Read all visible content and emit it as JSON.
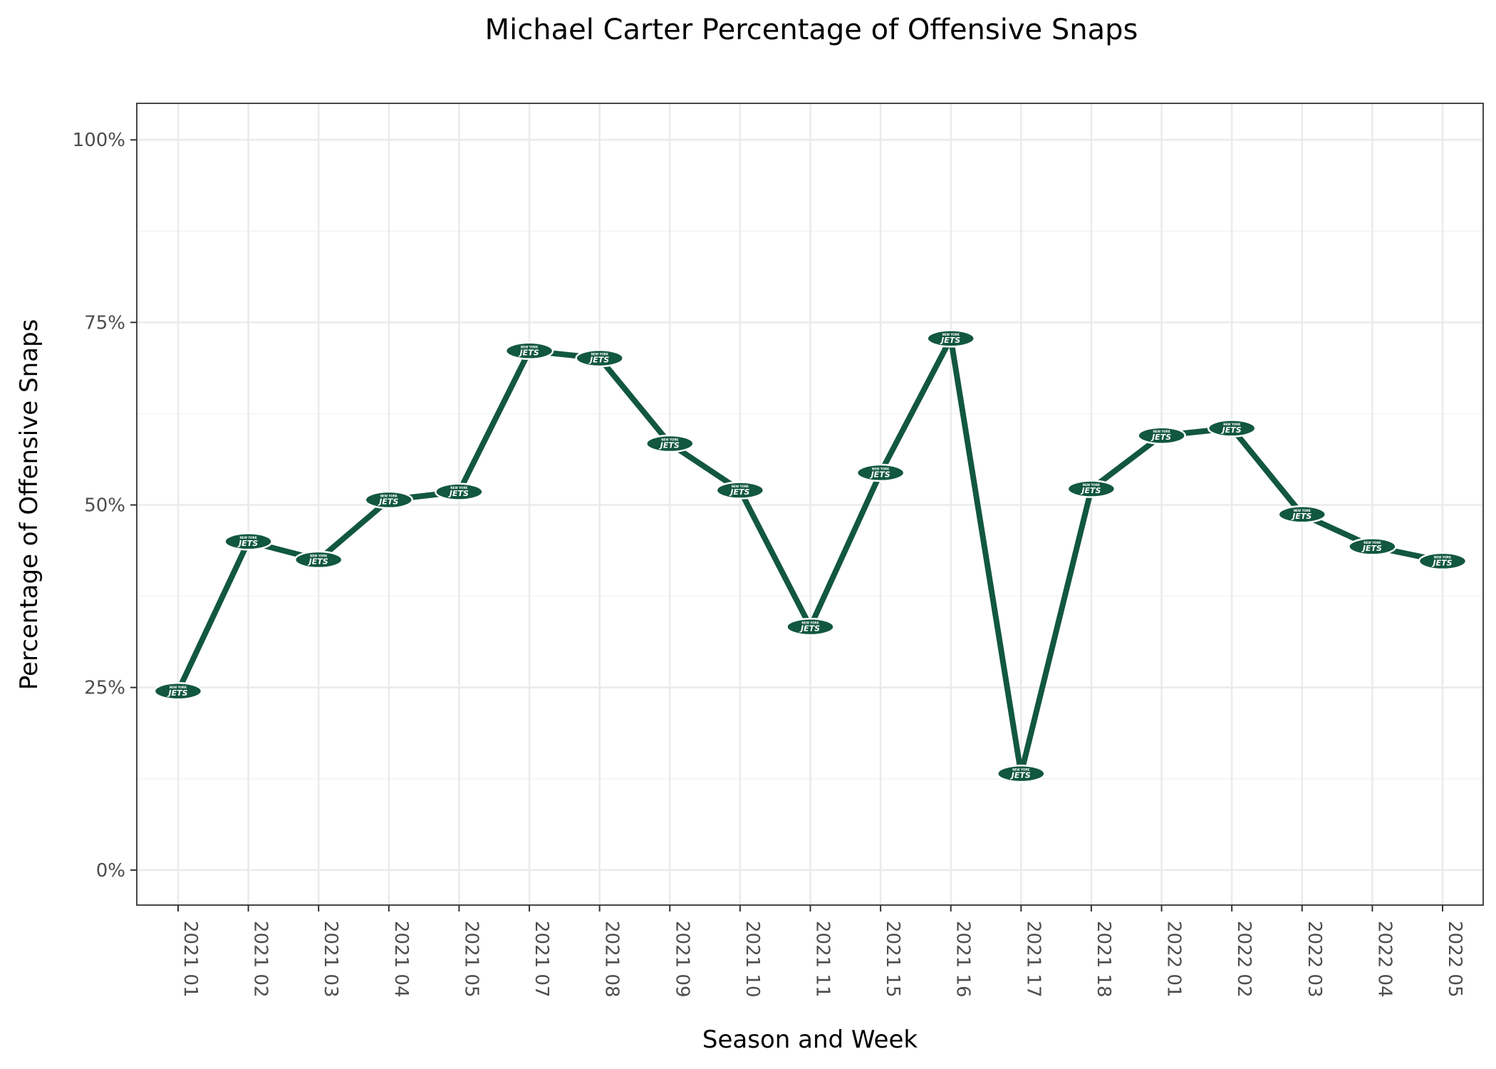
{
  "chart_data": {
    "type": "line",
    "title": "Michael Carter Percentage of Offensive Snaps",
    "xlabel": "Season and Week",
    "ylabel": "Percentage of Offensive Snaps",
    "categories": [
      "2021 01",
      "2021 02",
      "2021 03",
      "2021 04",
      "2021 05",
      "2021 07",
      "2021 08",
      "2021 09",
      "2021 10",
      "2021 11",
      "2021 15",
      "2021 16",
      "2021 17",
      "2021 18",
      "2022 01",
      "2022 02",
      "2022 03",
      "2022 04",
      "2022 05"
    ],
    "values": [
      24.5,
      45.0,
      42.5,
      50.7,
      51.8,
      71.1,
      70.1,
      58.4,
      52.0,
      33.3,
      54.4,
      72.8,
      13.2,
      52.2,
      59.5,
      60.5,
      48.7,
      44.3,
      42.3
    ],
    "ylim": [
      -4.8,
      105.0
    ],
    "yticks": [
      0,
      25,
      50,
      75,
      100
    ],
    "ytick_labels": [
      "0%",
      "25%",
      "50%",
      "75%",
      "100%"
    ],
    "grid": true,
    "line_color": "#125740",
    "marker": "new-york-jets-logo-icon",
    "marker_text": {
      "small": "NEW YORK",
      "main": "JETS"
    }
  }
}
